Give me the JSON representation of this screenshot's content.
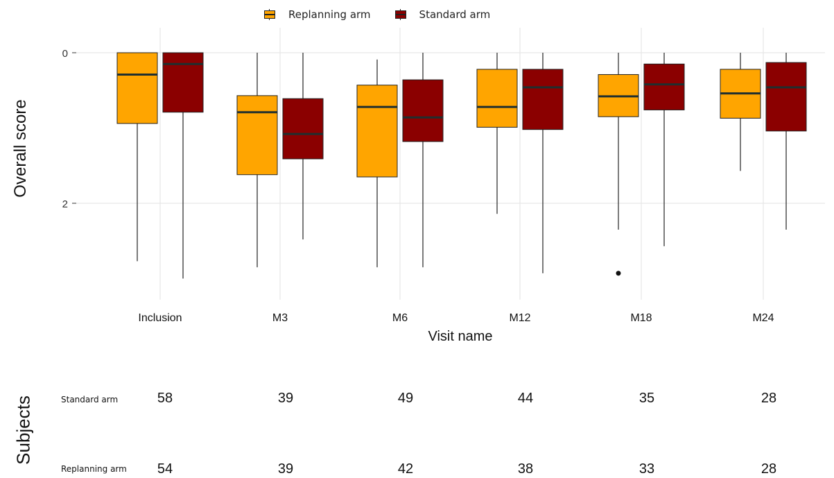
{
  "legend": {
    "replanning_label": "Replanning arm",
    "standard_label": "Standard arm"
  },
  "colors": {
    "replanning": "#FFA500",
    "standard": "#8B0000",
    "median": "#1f2f2f",
    "grid": "#e6e6e6"
  },
  "chart_data": {
    "type": "boxplot",
    "xlabel": "Visit name",
    "ylabel": "Overall score",
    "ylim": [
      0,
      3.05
    ],
    "y_reversed": true,
    "y_ticks": [
      0,
      2
    ],
    "grid": true,
    "legend_position": "top",
    "categories": [
      "Inclusion",
      "M3",
      "M6",
      "M12",
      "M18",
      "M24"
    ],
    "series": [
      {
        "name": "Replanning arm",
        "boxes": [
          {
            "min": 0,
            "q1": 0.0,
            "median": 0.29,
            "q3": 0.94,
            "max": 2.77,
            "outliers": []
          },
          {
            "min": 0,
            "q1": 0.57,
            "median": 0.79,
            "q3": 1.62,
            "max": 2.85,
            "outliers": []
          },
          {
            "min": 0.09,
            "q1": 0.43,
            "median": 0.72,
            "q3": 1.65,
            "max": 2.85,
            "outliers": []
          },
          {
            "min": 0,
            "q1": 0.22,
            "median": 0.72,
            "q3": 0.99,
            "max": 2.14,
            "outliers": []
          },
          {
            "min": 0,
            "q1": 0.29,
            "median": 0.58,
            "q3": 0.85,
            "max": 2.35,
            "outliers": [
              2.93
            ]
          },
          {
            "min": 0,
            "q1": 0.22,
            "median": 0.54,
            "q3": 0.87,
            "max": 1.57,
            "outliers": []
          }
        ]
      },
      {
        "name": "Standard arm",
        "boxes": [
          {
            "min": 0,
            "q1": 0.0,
            "median": 0.15,
            "q3": 0.79,
            "max": 3.0,
            "outliers": []
          },
          {
            "min": 0,
            "q1": 0.61,
            "median": 1.08,
            "q3": 1.41,
            "max": 2.48,
            "outliers": []
          },
          {
            "min": 0,
            "q1": 0.36,
            "median": 0.86,
            "q3": 1.18,
            "max": 2.85,
            "outliers": []
          },
          {
            "min": 0,
            "q1": 0.22,
            "median": 0.46,
            "q3": 1.02,
            "max": 2.93,
            "outliers": []
          },
          {
            "min": 0,
            "q1": 0.15,
            "median": 0.42,
            "q3": 0.76,
            "max": 2.57,
            "outliers": []
          },
          {
            "min": 0,
            "q1": 0.13,
            "median": 0.46,
            "q3": 1.04,
            "max": 2.35,
            "outliers": []
          }
        ]
      }
    ]
  },
  "subjects": {
    "title": "Subjects",
    "rows": [
      {
        "label": "Standard arm",
        "counts": [
          58,
          39,
          49,
          44,
          35,
          28
        ]
      },
      {
        "label": "Replanning arm",
        "counts": [
          54,
          39,
          42,
          38,
          33,
          28
        ]
      }
    ]
  }
}
